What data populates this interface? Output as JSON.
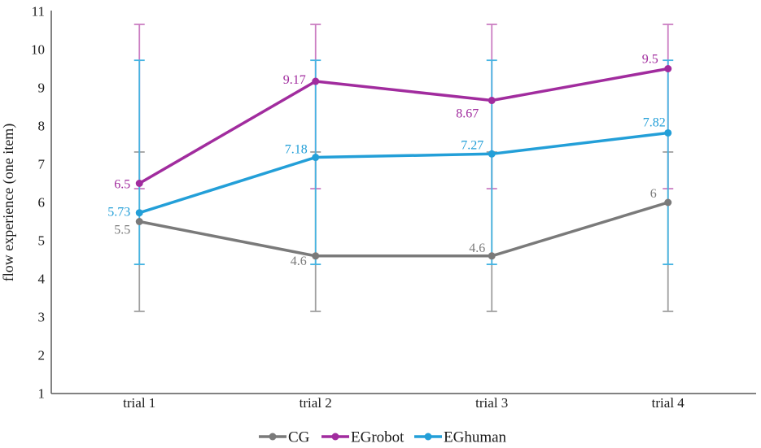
{
  "chart_data": {
    "type": "line",
    "title": "",
    "xlabel": "",
    "ylabel": "flow experience (one item)",
    "categories": [
      "trial 1",
      "trial 2",
      "trial 3",
      "trial 4"
    ],
    "ylim": [
      1,
      11
    ],
    "yticks": [
      1,
      2,
      3,
      4,
      5,
      6,
      7,
      8,
      9,
      10,
      11
    ],
    "grid": false,
    "legend_position": "bottom",
    "axis_color": "#595959",
    "text_color": "#1a1a1a",
    "series": [
      {
        "name": "CG",
        "color": "#7a7a7a",
        "error_color": "#a0a0a0",
        "values": [
          5.5,
          4.6,
          4.6,
          6
        ],
        "point_labels": [
          "5.5",
          "4.6",
          "4.6",
          "6"
        ],
        "label_offsets": [
          [
            -11,
            15
          ],
          [
            -11,
            11
          ],
          [
            -8,
            -5
          ],
          [
            -14,
            -6
          ]
        ],
        "error_bar": {
          "top": 7.32,
          "bottom": 3.15
        }
      },
      {
        "name": "EGrobot",
        "color": "#a12c9e",
        "error_color": "#cb7ec2",
        "values": [
          6.5,
          9.17,
          8.67,
          9.5
        ],
        "point_labels": [
          "6.5",
          "9.17",
          "8.67",
          "9.5"
        ],
        "label_offsets": [
          [
            -11,
            6
          ],
          [
            -12,
            3
          ],
          [
            -16,
            21
          ],
          [
            -12,
            -7
          ]
        ],
        "error_bar": {
          "top": 10.66,
          "bottom": 6.36
        }
      },
      {
        "name": "EGhuman",
        "color": "#239fd8",
        "error_color": "#45b4e2",
        "values": [
          5.73,
          7.18,
          7.27,
          7.82
        ],
        "point_labels": [
          "5.73",
          "7.18",
          "7.27",
          "7.82"
        ],
        "label_offsets": [
          [
            -11,
            4
          ],
          [
            -10,
            -5
          ],
          [
            -10,
            -6
          ],
          [
            -3,
            -8
          ]
        ],
        "error_bar": {
          "top": 9.72,
          "bottom": 4.38
        }
      }
    ],
    "legend": [
      "CG",
      "EGrobot",
      "EGhuman"
    ]
  }
}
